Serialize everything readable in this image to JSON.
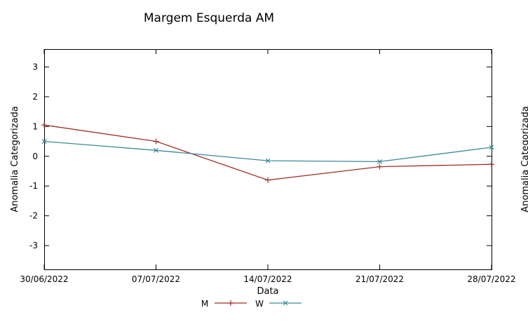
{
  "page": {
    "background": "#ffffff",
    "foreground": "#000000"
  },
  "chart_data": {
    "type": "line",
    "title": "Margem Esquerda AM",
    "xlabel": "Data",
    "ylabel": "Anomalia Categorizada",
    "categories": [
      "30/06/2022",
      "07/07/2022",
      "14/07/2022",
      "21/07/2022",
      "28/07/2022"
    ],
    "yticks": [
      -3,
      -2,
      -1,
      0,
      1,
      2,
      3
    ],
    "ylim": [
      -3.8,
      3.6
    ],
    "grid": false,
    "legend_position": "bottom-center",
    "series": [
      {
        "name": "M",
        "marker": "plus",
        "color": "#a03028",
        "values": [
          1.05,
          0.5,
          -0.8,
          -0.35,
          -0.27
        ]
      },
      {
        "name": "W",
        "marker": "cross",
        "color": "#3a8b96",
        "values": [
          0.5,
          0.2,
          -0.15,
          -0.18,
          0.3
        ]
      }
    ]
  },
  "adjacent_chart": {
    "ylabel": "Anomalia Categorizada"
  }
}
